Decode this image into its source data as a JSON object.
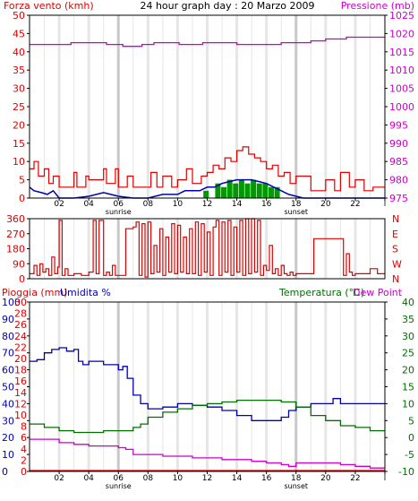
{
  "title": "24 hour graph day : 20 Marzo 2009",
  "colors": {
    "wind": "#e00000",
    "pressure": "#cc00cc",
    "direction": "#e00000",
    "humidity": "#0000b0",
    "temperature": "#007000",
    "dewpoint": "#cc00cc",
    "rain": "#e00000",
    "gust_fill": "#009900",
    "sun": "#c8c8c8",
    "grid": "#cccccc"
  },
  "x_ticks": [
    "02",
    "04",
    "06",
    "08",
    "10",
    "12",
    "14",
    "16",
    "18",
    "20",
    "22",
    "l"
  ],
  "sun_labels": {
    "sunrise": "sunrise",
    "sunset": "sunset"
  },
  "chart_data": [
    {
      "type": "line",
      "panel": "wind-pressure",
      "left_label": "Forza vento (kmh)",
      "right_label": "Pressione (mb)",
      "yleft_ticks": [
        "0",
        "5",
        "10",
        "15",
        "20",
        "25",
        "30",
        "35",
        "40",
        "45",
        "50"
      ],
      "yright_ticks": [
        "975",
        "980",
        "985",
        "990",
        "995",
        "1000",
        "1005",
        "1010",
        "1015",
        "1020",
        "1025"
      ],
      "ylim_left": [
        0,
        50
      ],
      "ylim_right": [
        975,
        1025
      ],
      "xlim": [
        0,
        24
      ],
      "series": [
        {
          "key": "pressure",
          "axis": "right",
          "x": [
            0,
            2.5,
            2.8,
            5.0,
            5.2,
            6.2,
            6.3,
            7.5,
            7.6,
            8.2,
            8.4,
            10.0,
            10.1,
            11.5,
            11.7,
            13.8,
            14.0,
            16.8,
            17.0,
            18.8,
            19.0,
            19.8,
            20.0,
            21.2,
            21.4,
            24
          ],
          "y": [
            1017,
            1017,
            1017.5,
            1017.5,
            1017,
            1017,
            1016.5,
            1016.5,
            1017,
            1017,
            1017.5,
            1017.5,
            1017,
            1017,
            1017.5,
            1017.5,
            1017,
            1017,
            1017.5,
            1017.5,
            1018,
            1018,
            1018.5,
            1018.5,
            1019,
            1019
          ]
        },
        {
          "key": "wind_avg",
          "axis": "left",
          "x": [
            0,
            0.3,
            0.8,
            1.2,
            1.6,
            2.0,
            3.0,
            4.0,
            5.0,
            6.0,
            7.0,
            8.0,
            9.0,
            10.0,
            10.5,
            11.0,
            11.5,
            12.0,
            12.5,
            13.0,
            13.5,
            14.0,
            14.5,
            15.0,
            15.5,
            16.0,
            16.5,
            17.0,
            17.5,
            18.0,
            18.5,
            24
          ],
          "y": [
            3,
            2,
            1.5,
            1,
            2,
            0,
            0,
            0.5,
            1.5,
            0.5,
            0,
            0,
            1,
            1,
            2,
            2,
            2,
            3,
            3,
            4,
            4.5,
            5,
            5,
            5,
            4.5,
            4,
            3,
            2,
            1,
            0.5,
            0,
            0
          ]
        }
      ],
      "wind_max": {
        "x": [
          0,
          0.3,
          0.6,
          1.0,
          1.3,
          1.6,
          2.0,
          3.0,
          3.2,
          3.8,
          4.0,
          5.0,
          5.2,
          5.8,
          6.0,
          6.6,
          7.0,
          8.0,
          8.2,
          8.6,
          9.0,
          9.6,
          10.0,
          10.6,
          11.0,
          11.6,
          12.0,
          12.4,
          12.8,
          13.2,
          13.6,
          14.0,
          14.4,
          14.8,
          15.2,
          15.6,
          16.0,
          16.4,
          16.8,
          17.2,
          17.6,
          18.0,
          19.0,
          20.0,
          20.6,
          21.0,
          21.6,
          22.0,
          22.6,
          23.2,
          24
        ],
        "y": [
          8,
          10,
          6,
          8,
          4,
          6,
          3,
          7,
          3,
          6,
          5,
          8,
          4,
          8,
          3,
          6,
          3,
          3,
          7,
          3,
          6,
          3,
          5,
          8,
          4,
          6,
          7,
          9,
          8,
          11,
          10,
          13,
          14,
          12,
          11,
          10,
          8,
          9,
          6,
          7,
          4,
          6,
          2,
          5,
          2,
          7,
          3,
          5,
          2,
          3,
          3
        ]
      },
      "gust_fill": {
        "x": [
          11.8,
          12.6,
          13.0,
          13.4,
          13.8,
          14.2,
          14.6,
          15.0,
          15.4,
          15.8,
          16.2,
          16.6
        ],
        "y": [
          2,
          4,
          3,
          5,
          4,
          5,
          4,
          5,
          4,
          4,
          3,
          3
        ]
      }
    },
    {
      "type": "line",
      "panel": "wind-direction",
      "yleft_ticks": [
        "0",
        "90",
        "180",
        "270",
        "360"
      ],
      "yright_ticks": [
        "N",
        "E",
        "S",
        "W",
        "N"
      ],
      "ylim": [
        0,
        360
      ],
      "xlim": [
        0,
        24
      ],
      "series": [
        {
          "key": "direction",
          "x": [
            0,
            0.3,
            0.5,
            0.7,
            0.9,
            1.1,
            1.3,
            1.5,
            1.7,
            1.9,
            2.0,
            2.2,
            2.4,
            2.6,
            3.0,
            3.5,
            4.0,
            4.3,
            4.5,
            4.7,
            5.0,
            5.2,
            5.4,
            5.6,
            5.8,
            6.0,
            6.5,
            7.0,
            7.2,
            7.4,
            7.6,
            7.8,
            8.0,
            8.2,
            8.4,
            8.6,
            8.8,
            9.0,
            9.2,
            9.4,
            9.6,
            9.8,
            10.0,
            10.2,
            10.4,
            10.6,
            10.8,
            11.0,
            11.2,
            11.4,
            11.6,
            11.8,
            12.0,
            12.2,
            12.4,
            12.6,
            12.8,
            13.0,
            13.2,
            13.4,
            13.6,
            13.8,
            14.0,
            14.2,
            14.4,
            14.6,
            14.8,
            15.0,
            15.2,
            15.4,
            15.6,
            15.8,
            16.0,
            16.2,
            16.4,
            16.6,
            16.8,
            17.0,
            17.2,
            17.4,
            17.6,
            17.8,
            18.0,
            18.5,
            19.0,
            19.2,
            19.4,
            21.0,
            21.2,
            21.4,
            21.6,
            21.8,
            22.0,
            22.5,
            23.0,
            23.5,
            24
          ],
          "y": [
            30,
            80,
            20,
            90,
            40,
            60,
            20,
            130,
            30,
            70,
            350,
            20,
            60,
            20,
            30,
            20,
            40,
            350,
            30,
            350,
            20,
            40,
            20,
            80,
            20,
            20,
            300,
            310,
            340,
            20,
            330,
            10,
            340,
            30,
            200,
            40,
            300,
            20,
            250,
            40,
            330,
            30,
            320,
            40,
            250,
            30,
            300,
            30,
            340,
            20,
            330,
            40,
            280,
            20,
            310,
            350,
            20,
            340,
            40,
            350,
            20,
            310,
            40,
            350,
            20,
            360,
            30,
            360,
            40,
            350,
            20,
            80,
            50,
            200,
            30,
            60,
            20,
            80,
            30,
            20,
            40,
            20,
            30,
            30,
            30,
            240,
            240,
            240,
            20,
            150,
            40,
            20,
            30,
            30,
            60,
            30,
            30
          ]
        }
      ]
    },
    {
      "type": "line",
      "panel": "rain-humidity-temperature",
      "left_labels": {
        "rain": "Pioggia (mm)",
        "humidity": "Umidita %"
      },
      "right_labels": {
        "temperature": "Temperatura (°C)",
        "dewpoint": "Dew Point"
      },
      "yrain_ticks": [
        "0",
        "2",
        "4",
        "6",
        "8",
        "10",
        "12",
        "14",
        "16",
        "18",
        "20",
        "22",
        "24",
        "26",
        "28",
        "30"
      ],
      "yhum_ticks": [
        "0",
        "10",
        "20",
        "30",
        "40",
        "50",
        "60",
        "70",
        "80",
        "90",
        "100"
      ],
      "ytemp_ticks": [
        "-10",
        "-5",
        "0",
        "5",
        "10",
        "15",
        "20",
        "25",
        "30",
        "35",
        "40"
      ],
      "ylim_humidity": [
        0,
        100
      ],
      "ylim_temperature": [
        -10,
        40
      ],
      "xlim": [
        0,
        24
      ],
      "series": [
        {
          "key": "humidity",
          "axis": "humidity",
          "x": [
            0,
            0.5,
            1.0,
            1.5,
            2.0,
            2.5,
            3.0,
            3.3,
            3.6,
            4.0,
            5.0,
            6.0,
            6.3,
            6.6,
            7.0,
            7.5,
            8.0,
            9.0,
            10.0,
            11.0,
            12.0,
            13.0,
            14.0,
            15.0,
            16.0,
            16.5,
            17.0,
            17.5,
            18.0,
            19.0,
            20.0,
            20.5,
            21.0,
            22.0,
            24
          ],
          "y": [
            65,
            66,
            70,
            72,
            73,
            71,
            72,
            65,
            63,
            65,
            63,
            60,
            62,
            55,
            45,
            40,
            37,
            38,
            40,
            39,
            38,
            36,
            33,
            30,
            30,
            30,
            32,
            36,
            38,
            40,
            40,
            43,
            40,
            40,
            40
          ]
        },
        {
          "key": "temperature",
          "axis": "temperature",
          "x": [
            0,
            1.0,
            2.0,
            3.0,
            4.0,
            5.0,
            6.0,
            7.0,
            7.5,
            8.0,
            9.0,
            10.0,
            11.0,
            12.0,
            13.0,
            14.0,
            15.0,
            16.0,
            17.0,
            18.0,
            19.0,
            20.0,
            21.0,
            22.0,
            23.0,
            24
          ],
          "y": [
            4,
            3,
            2,
            1.5,
            1.5,
            2,
            2,
            3,
            4,
            6,
            7.5,
            8.5,
            9.5,
            10,
            10.5,
            11,
            11,
            11,
            10.5,
            9,
            6.5,
            5,
            3.5,
            3,
            2,
            2
          ]
        },
        {
          "key": "dewpoint",
          "axis": "temperature",
          "x": [
            0,
            1.0,
            2.0,
            3.0,
            4.0,
            5.0,
            6.0,
            6.5,
            7.0,
            8.0,
            9.0,
            10.0,
            11.0,
            12.0,
            13.0,
            14.0,
            15.0,
            16.0,
            17.0,
            17.5,
            18.0,
            19.0,
            20.0,
            21.0,
            22.0,
            23.0,
            24
          ],
          "y": [
            -0.5,
            -0.5,
            -1.5,
            -2,
            -2.5,
            -2.5,
            -3,
            -3.5,
            -5,
            -5,
            -5.5,
            -5.5,
            -6,
            -6,
            -6.5,
            -6.5,
            -7,
            -7.5,
            -8,
            -8.5,
            -7.5,
            -7.5,
            -7.5,
            -8,
            -8.5,
            -9,
            -9
          ]
        },
        {
          "key": "rain",
          "axis": "rain",
          "x": [
            0,
            24
          ],
          "y": [
            0,
            0
          ]
        }
      ]
    }
  ]
}
